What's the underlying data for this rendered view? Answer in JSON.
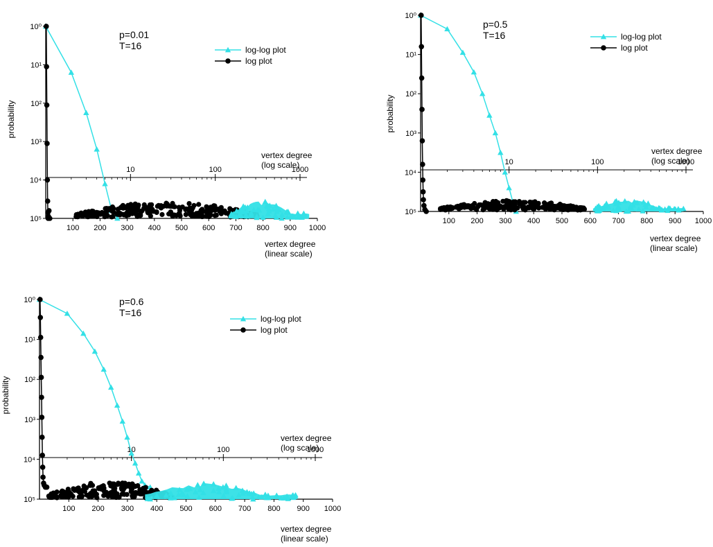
{
  "panels": [
    {
      "annotation": [
        "p=0.01",
        "T=16"
      ],
      "ylabel": "probability",
      "y_ticks": [
        "10⁰",
        "10¹",
        "10²",
        "10³",
        "10⁴",
        "10⁵"
      ],
      "top_xlabel": [
        "vertex degree",
        "(log scale)"
      ],
      "top_ticks": [
        "10",
        "100",
        "1000"
      ],
      "bottom_xlabel": [
        "vertex degree",
        "(linear scale)"
      ],
      "bottom_ticks": [
        "100",
        "200",
        "300",
        "400",
        "500",
        "600",
        "700",
        "800",
        "900",
        "1000"
      ],
      "legend": [
        "log-log  plot",
        "log plot"
      ]
    },
    {
      "annotation": [
        "p=0.5",
        "T=16"
      ],
      "ylabel": "probability",
      "y_ticks": [
        "10⁰",
        "10¹",
        "10²",
        "10³",
        "10⁴",
        "10⁵"
      ],
      "top_xlabel": [
        "vertex degree",
        "(log scale)"
      ],
      "top_ticks": [
        "10",
        "100",
        "1000"
      ],
      "bottom_xlabel": [
        "vertex degree",
        "(linear scale)"
      ],
      "bottom_ticks": [
        "100",
        "200",
        "300",
        "400",
        "500",
        "600",
        "700",
        "800",
        "900",
        "1000"
      ],
      "legend": [
        "log-log  plot",
        "log plot"
      ]
    },
    {
      "annotation": [
        "p=0.6",
        "T=16"
      ],
      "ylabel": "probability",
      "y_ticks": [
        "10⁰",
        "10¹",
        "10²",
        "10³",
        "10⁴",
        "10⁵"
      ],
      "top_xlabel": [
        "vertex degree",
        "(log scale)"
      ],
      "top_ticks": [
        "10",
        "100",
        "1000"
      ],
      "bottom_xlabel": [
        "vertex degree",
        "(linear scale)"
      ],
      "bottom_ticks": [
        "100",
        "200",
        "300",
        "400",
        "500",
        "600",
        "700",
        "800",
        "900",
        "1000"
      ],
      "legend": [
        "log-log  plot",
        "log plot"
      ]
    }
  ],
  "chart_data": [
    {
      "type": "line",
      "y_scale": "log",
      "ylim_exponent": [
        0,
        -5
      ],
      "top_x_scale": "log",
      "top_xlim": [
        1,
        1000
      ],
      "bottom_xlim": [
        0,
        1000
      ],
      "colors": {
        "log-log": "#33e0e6",
        "log": "#000000"
      },
      "series": [
        {
          "name": "log-log  plot",
          "x_axis": "top",
          "x": [
            1,
            2,
            3,
            4,
            5,
            6,
            7
          ],
          "y_exponent": [
            0,
            -1.2,
            -2.25,
            -3.2,
            -4.1,
            -4.8,
            -5.0
          ]
        },
        {
          "name": "log plot",
          "x_axis": "bottom",
          "x": [
            2,
            3,
            4,
            5,
            6,
            7,
            8,
            9,
            10,
            12,
            15
          ],
          "y_exponent": [
            0,
            -1.05,
            -2.05,
            -3.05,
            -4.0,
            -4.55,
            -4.85,
            -5.0,
            -4.95,
            -4.8,
            -5.0
          ]
        },
        {
          "name": "log plot (scatter, bottom axis)",
          "x_axis": "bottom",
          "type": "scatter-band",
          "x_range": [
            110,
            780
          ],
          "y_exponent_low": -5.0,
          "y_exponent_high": -4.6
        },
        {
          "name": "log-log plot (band, bottom axis)",
          "x_axis": "bottom",
          "type": "area-band",
          "x_range": [
            680,
            970
          ],
          "y_exponent_low": -5.0,
          "y_exponent_high": -4.55
        }
      ]
    },
    {
      "type": "line",
      "y_scale": "log",
      "ylim_exponent": [
        0,
        -5
      ],
      "top_x_scale": "log",
      "top_xlim": [
        1,
        1000
      ],
      "bottom_xlim": [
        0,
        1000
      ],
      "colors": {
        "log-log": "#33e0e6",
        "log": "#000000"
      },
      "series": [
        {
          "name": "log-log  plot",
          "x_axis": "top",
          "x": [
            1,
            2,
            3,
            4,
            5,
            6,
            7,
            8,
            9,
            10,
            11,
            12
          ],
          "y_exponent": [
            0,
            -0.35,
            -0.95,
            -1.45,
            -2.0,
            -2.55,
            -3.0,
            -3.5,
            -4.0,
            -4.4,
            -4.75,
            -5.0
          ]
        },
        {
          "name": "log plot",
          "x_axis": "bottom",
          "x": [
            2,
            3,
            4,
            5,
            6,
            7,
            8,
            9,
            10,
            12,
            15,
            20
          ],
          "y_exponent": [
            0,
            -0.8,
            -1.6,
            -2.4,
            -3.2,
            -3.8,
            -4.2,
            -4.5,
            -4.7,
            -4.85,
            -4.95,
            -5.0
          ]
        },
        {
          "name": "log plot (scatter, bottom axis)",
          "x_axis": "bottom",
          "type": "scatter-band",
          "x_range": [
            70,
            580
          ],
          "y_exponent_low": -5.0,
          "y_exponent_high": -4.75
        },
        {
          "name": "log-log plot (band, bottom axis)",
          "x_axis": "bottom",
          "type": "area-band",
          "x_range": [
            610,
            930
          ],
          "y_exponent_low": -5.0,
          "y_exponent_high": -4.7
        }
      ]
    },
    {
      "type": "line",
      "y_scale": "log",
      "ylim_exponent": [
        0,
        -5
      ],
      "top_x_scale": "log",
      "top_xlim": [
        1,
        1000
      ],
      "bottom_xlim": [
        0,
        1000
      ],
      "colors": {
        "log-log": "#33e0e6",
        "log": "#000000"
      },
      "series": [
        {
          "name": "log-log  plot",
          "x_axis": "top",
          "x": [
            1,
            2,
            3,
            4,
            5,
            6,
            7,
            8,
            9,
            10,
            11,
            12,
            13,
            14,
            16
          ],
          "y_exponent": [
            0,
            -0.35,
            -0.85,
            -1.3,
            -1.75,
            -2.2,
            -2.65,
            -3.05,
            -3.45,
            -3.85,
            -4.1,
            -4.35,
            -4.55,
            -4.65,
            -4.7
          ]
        },
        {
          "name": "log plot",
          "x_axis": "bottom",
          "x": [
            2,
            3,
            4,
            5,
            6,
            7,
            8,
            9,
            10,
            11,
            12,
            14,
            16,
            20,
            25
          ],
          "y_exponent": [
            0,
            -0.45,
            -0.95,
            -1.45,
            -1.95,
            -2.45,
            -2.95,
            -3.45,
            -3.9,
            -4.2,
            -4.45,
            -4.6,
            -4.65,
            -4.7,
            -4.7
          ]
        },
        {
          "name": "log plot (scatter, bottom axis)",
          "x_axis": "bottom",
          "type": "scatter-band",
          "x_range": [
            30,
            450
          ],
          "y_exponent_low": -5.0,
          "y_exponent_high": -4.6
        },
        {
          "name": "log-log plot (band, bottom axis)",
          "x_axis": "bottom",
          "type": "area-band",
          "x_range": [
            360,
            880
          ],
          "y_exponent_low": -5.0,
          "y_exponent_high": -4.6
        }
      ]
    }
  ]
}
